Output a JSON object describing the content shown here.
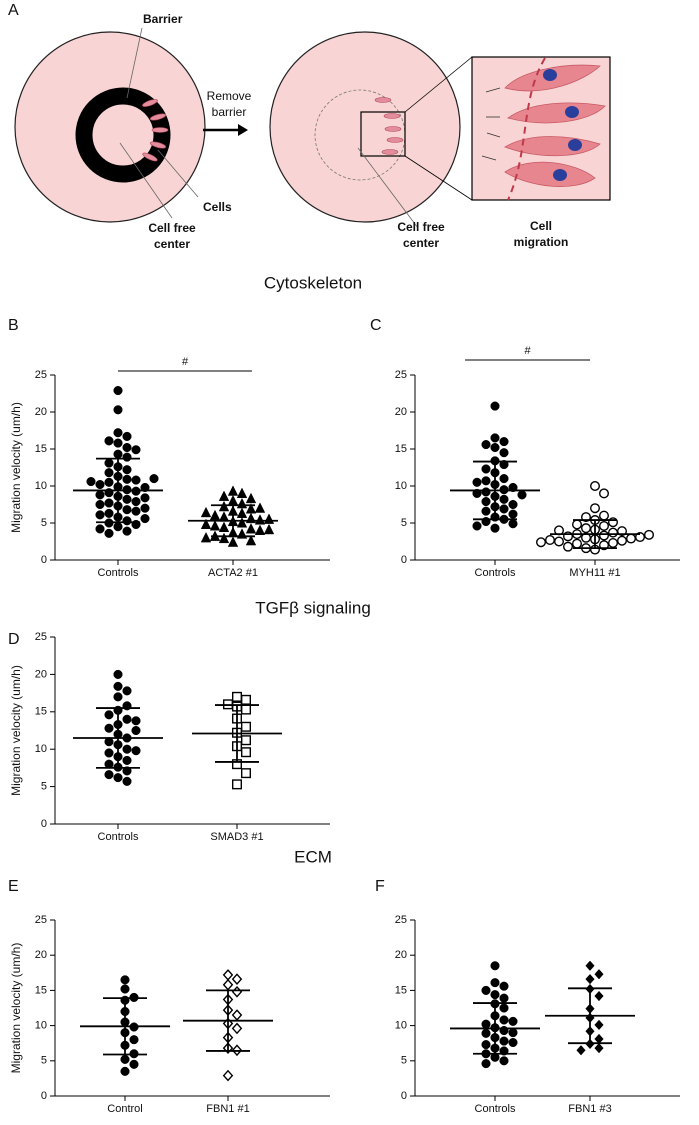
{
  "panel_a": {
    "label": "A",
    "barrier": "Barrier",
    "remove_barrier": [
      "Remove",
      "barrier"
    ],
    "cells": "Cells",
    "cell_free_center_left": [
      "Cell free",
      "center"
    ],
    "cell_free_center_right": [
      "Cell free",
      "center"
    ],
    "cell_migration": [
      "Cell",
      "migration"
    ]
  },
  "sections": [
    "Cytoskeleton",
    "TGFβ signaling",
    "ECM"
  ],
  "chart_data": [
    {
      "type": "dotplot",
      "panel": "B",
      "ylabel": "Migration velocity (um/h)",
      "ylim": [
        0,
        25
      ],
      "yticks": [
        0,
        5,
        10,
        15,
        20,
        25
      ],
      "significance": "#",
      "color": "#000000",
      "categories": [
        "Controls",
        "ACTA2 #1"
      ],
      "groups": [
        {
          "marker": "circle-filled",
          "mean": 9.4,
          "sd": 4.3,
          "values": [
            22.9,
            20.3,
            17.2,
            16.7,
            16.1,
            15.8,
            15.2,
            14.9,
            14.3,
            13.9,
            13.1,
            12.6,
            12.2,
            11.8,
            11.3,
            10.9,
            10.8,
            10.5,
            10.2,
            9.9,
            9.8,
            9.5,
            9.3,
            9.1,
            8.8,
            8.6,
            8.4,
            8.2,
            7.9,
            7.7,
            7.5,
            7.3,
            7.0,
            6.8,
            6.6,
            6.3,
            6.1,
            5.8,
            5.6,
            5.3,
            5.0,
            4.8,
            4.5,
            4.2,
            3.9,
            3.6,
            10.6,
            11.0
          ]
        },
        {
          "marker": "triangle-filled",
          "mean": 5.3,
          "sd": 2.1,
          "values": [
            9.3,
            9.0,
            8.6,
            8.3,
            8.0,
            7.6,
            7.2,
            6.9,
            6.6,
            6.3,
            6.0,
            5.8,
            5.6,
            5.4,
            5.2,
            5.0,
            4.8,
            4.6,
            4.4,
            4.2,
            4.0,
            3.7,
            3.5,
            3.2,
            2.9,
            2.6,
            2.4,
            5.5,
            6.4,
            4.1,
            7.0,
            3.0
          ]
        }
      ]
    },
    {
      "type": "dotplot",
      "panel": "C",
      "ylim": [
        0,
        25
      ],
      "yticks": [
        0,
        5,
        10,
        15,
        20,
        25
      ],
      "significance": "#",
      "color": "#000000",
      "categories": [
        "Controls",
        "MYH11 #1"
      ],
      "groups": [
        {
          "marker": "circle-filled",
          "mean": 9.4,
          "sd": 3.9,
          "values": [
            20.8,
            16.5,
            16.0,
            15.6,
            15.2,
            14.5,
            13.4,
            12.9,
            12.3,
            11.8,
            11.0,
            10.7,
            10.2,
            9.8,
            9.5,
            9.2,
            9.0,
            8.6,
            8.2,
            7.9,
            7.5,
            7.2,
            6.9,
            6.6,
            6.2,
            5.8,
            5.5,
            5.2,
            4.9,
            4.6,
            4.3,
            10.5,
            8.8
          ]
        },
        {
          "marker": "circle-open",
          "mean": 3.5,
          "sd": 1.9,
          "values": [
            10.0,
            9.0,
            7.0,
            6.0,
            5.8,
            5.4,
            5.1,
            4.8,
            4.6,
            4.3,
            4.1,
            3.9,
            3.7,
            3.5,
            3.3,
            3.2,
            3.0,
            2.9,
            2.8,
            2.6,
            2.5,
            2.3,
            2.2,
            2.0,
            1.8,
            1.6,
            1.4,
            3.1,
            2.7,
            3.4,
            4.0,
            2.4
          ]
        }
      ]
    },
    {
      "type": "dotplot",
      "panel": "D",
      "ylabel": "Migration velocity (um/h)",
      "ylim": [
        0,
        25
      ],
      "yticks": [
        0,
        5,
        10,
        15,
        20,
        25
      ],
      "color": "#000000",
      "categories": [
        "Controls",
        "SMAD3 #1"
      ],
      "groups": [
        {
          "marker": "circle-filled",
          "mean": 11.5,
          "sd": 4.0,
          "values": [
            20.0,
            18.4,
            17.8,
            17.0,
            15.8,
            15.2,
            14.6,
            14.0,
            13.3,
            12.8,
            12.0,
            11.5,
            11.0,
            10.6,
            10.0,
            9.5,
            9.0,
            8.5,
            8.0,
            7.6,
            7.1,
            6.6,
            6.2,
            5.7,
            12.5,
            9.8,
            13.8
          ]
        },
        {
          "marker": "square-open",
          "mean": 12.1,
          "sd": 3.8,
          "values": [
            17.0,
            16.6,
            16.0,
            15.7,
            15.3,
            14.1,
            13.0,
            12.2,
            11.2,
            10.4,
            9.6,
            8.0,
            6.8,
            5.3
          ]
        }
      ]
    },
    {
      "type": "dotplot",
      "panel": "E",
      "ylabel": "Migration velocity (um/h)",
      "ylim": [
        0,
        25
      ],
      "yticks": [
        0,
        5,
        10,
        15,
        20,
        25
      ],
      "color": "#000000",
      "categories": [
        "Control",
        "FBN1 #1"
      ],
      "groups": [
        {
          "marker": "circle-filled",
          "mean": 9.9,
          "sd": 4.0,
          "values": [
            16.5,
            15.2,
            14.0,
            13.6,
            12.0,
            10.5,
            9.8,
            9.0,
            8.0,
            7.2,
            6.0,
            5.2,
            4.5,
            3.5
          ]
        },
        {
          "marker": "diamond-open",
          "mean": 10.7,
          "sd": 4.3,
          "values": [
            17.2,
            16.6,
            15.8,
            14.8,
            13.7,
            12.2,
            11.5,
            10.3,
            9.6,
            8.3,
            6.8,
            6.5,
            2.9
          ]
        }
      ]
    },
    {
      "type": "dotplot",
      "panel": "F",
      "ylim": [
        0,
        25
      ],
      "yticks": [
        0,
        5,
        10,
        15,
        20,
        25
      ],
      "color": "#000000",
      "categories": [
        "Controls",
        "FBN1 #3"
      ],
      "groups": [
        {
          "marker": "circle-filled",
          "mean": 9.6,
          "sd": 3.6,
          "values": [
            18.5,
            16.1,
            15.6,
            15.0,
            14.4,
            13.9,
            13.1,
            12.5,
            11.4,
            10.8,
            10.2,
            9.7,
            9.3,
            8.9,
            8.3,
            7.8,
            7.3,
            6.8,
            6.4,
            6.0,
            5.5,
            5.0,
            4.6,
            10.6,
            9.0,
            7.6
          ]
        },
        {
          "marker": "diamond-filled",
          "mean": 11.4,
          "sd": 3.9,
          "values": [
            18.5,
            17.3,
            16.6,
            15.2,
            14.2,
            12.4,
            11.1,
            10.1,
            9.2,
            8.1,
            7.4,
            6.8,
            6.5
          ]
        }
      ]
    }
  ]
}
